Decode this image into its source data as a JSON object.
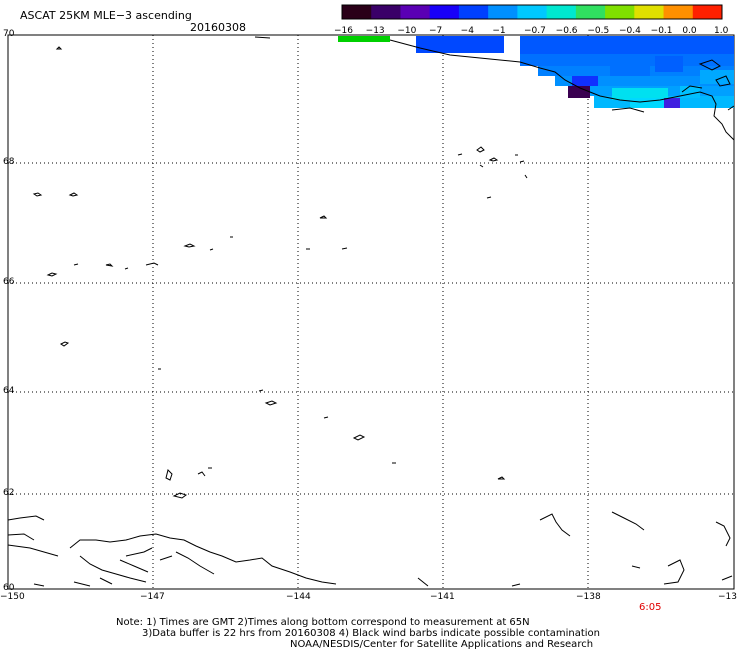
{
  "header": {
    "title": "ASCAT 25KM MLE−3 ascending",
    "date": "20160308"
  },
  "colorbar": {
    "labels": [
      "−16",
      "−13",
      "−10",
      "−7",
      "−4",
      "−1",
      "−0.7",
      "−0.6",
      "−0.5",
      "−0.4",
      "−0.1",
      "0.0",
      "1.0"
    ],
    "colors": [
      "#2a0018",
      "#3a0068",
      "#5a00b4",
      "#1800f8",
      "#0040ff",
      "#0090ff",
      "#00c8ff",
      "#00e8d0",
      "#30e060",
      "#80e000",
      "#e0e000",
      "#ff9000",
      "#ff2000"
    ]
  },
  "axes": {
    "lat_labels": [
      "70",
      "68",
      "66",
      "64",
      "62",
      "60"
    ],
    "lon_labels": [
      "−150",
      "−147",
      "−144",
      "−141",
      "−138",
      "−13"
    ]
  },
  "pass_time": "6:05",
  "notes": {
    "line1": "Note: 1) Times are GMT 2)Times along bottom correspond to measurement at 65N",
    "line2": "3)Data buffer is 22 hrs from 20160308 4) Black wind barbs indicate possible contamination",
    "line3": "NOAA/NESDIS/Center for Satellite Applications and Research"
  }
}
